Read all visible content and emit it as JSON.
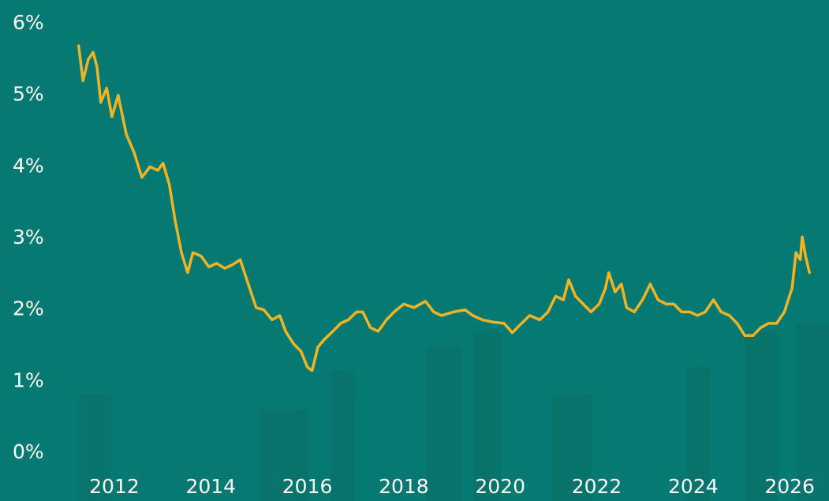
{
  "chart_data": {
    "type": "line",
    "x": [
      2011.26,
      2011.35,
      2011.46,
      2011.56,
      2011.64,
      2011.72,
      2011.84,
      2011.95,
      2012.08,
      2012.25,
      2012.41,
      2012.57,
      2012.74,
      2012.9,
      2013.01,
      2013.14,
      2013.26,
      2013.39,
      2013.52,
      2013.63,
      2013.8,
      2013.96,
      2014.12,
      2014.29,
      2014.45,
      2014.61,
      2014.78,
      2014.94,
      2015.1,
      2015.27,
      2015.43,
      2015.55,
      2015.71,
      2015.87,
      2016.0,
      2016.1,
      2016.22,
      2016.36,
      2016.53,
      2016.69,
      2016.85,
      2017.02,
      2017.15,
      2017.31,
      2017.47,
      2017.64,
      2017.8,
      2018.0,
      2018.21,
      2018.45,
      2018.62,
      2018.78,
      2019.03,
      2019.27,
      2019.43,
      2019.63,
      2019.84,
      2020.08,
      2020.25,
      2020.41,
      2020.61,
      2020.82,
      2020.99,
      2021.15,
      2021.31,
      2021.42,
      2021.56,
      2021.72,
      2021.88,
      2022.05,
      2022.18,
      2022.25,
      2022.38,
      2022.51,
      2022.62,
      2022.78,
      2022.95,
      2023.11,
      2023.27,
      2023.44,
      2023.6,
      2023.76,
      2023.93,
      2024.09,
      2024.25,
      2024.42,
      2024.58,
      2024.75,
      2024.91,
      2025.07,
      2025.24,
      2025.4,
      2025.56,
      2025.73,
      2025.89,
      2025.97,
      2026.05,
      2026.13,
      2026.22,
      2026.26,
      2026.33,
      2026.41
    ],
    "values": [
      5.69,
      5.2,
      5.5,
      5.6,
      5.4,
      4.9,
      5.1,
      4.7,
      5.0,
      4.45,
      4.2,
      3.85,
      4.0,
      3.95,
      4.05,
      3.75,
      3.25,
      2.8,
      2.52,
      2.8,
      2.75,
      2.6,
      2.65,
      2.58,
      2.63,
      2.7,
      2.35,
      2.03,
      2.0,
      1.86,
      1.92,
      1.7,
      1.53,
      1.42,
      1.2,
      1.15,
      1.48,
      1.59,
      1.7,
      1.81,
      1.86,
      1.97,
      1.97,
      1.75,
      1.7,
      1.86,
      1.97,
      2.08,
      2.03,
      2.12,
      1.97,
      1.92,
      1.97,
      2.0,
      1.92,
      1.86,
      1.83,
      1.81,
      1.68,
      1.79,
      1.92,
      1.86,
      1.97,
      2.19,
      2.14,
      2.42,
      2.19,
      2.08,
      1.97,
      2.08,
      2.3,
      2.52,
      2.25,
      2.36,
      2.03,
      1.97,
      2.14,
      2.36,
      2.14,
      2.08,
      2.08,
      1.97,
      1.97,
      1.92,
      1.97,
      2.14,
      1.97,
      1.92,
      1.81,
      1.64,
      1.64,
      1.75,
      1.81,
      1.81,
      1.97,
      2.14,
      2.3,
      2.8,
      2.7,
      3.02,
      2.75,
      2.52
    ],
    "color": "#f0b323",
    "xlim": [
      2011,
      2026.75
    ],
    "xticks": [
      2012,
      2014,
      2016,
      2018,
      2020,
      2022,
      2024,
      2026
    ],
    "ylim": [
      0,
      6
    ],
    "yticks": [
      {
        "value": 0,
        "label": "0%"
      },
      {
        "value": 1,
        "label": "1%"
      },
      {
        "value": 2,
        "label": "2%"
      },
      {
        "value": 3,
        "label": "3%"
      },
      {
        "value": 4,
        "label": "4%"
      },
      {
        "value": 5,
        "label": "5%"
      },
      {
        "value": 6,
        "label": "6%"
      }
    ]
  }
}
